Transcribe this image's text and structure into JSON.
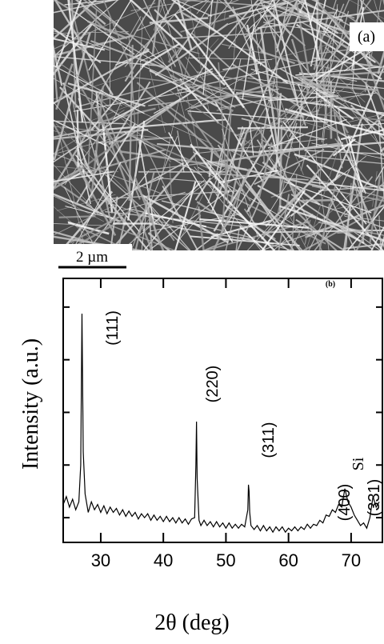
{
  "panel_a": {
    "label": "(a)",
    "scale_bar": "2 µm"
  },
  "chart_data": {
    "type": "line",
    "panel_label": "(b)",
    "x_label": "2θ (deg)",
    "y_label": "Intensity (a.u.)",
    "xlim": [
      24,
      75
    ],
    "xticks": [
      30,
      40,
      50,
      60,
      70
    ],
    "ylim": [
      -9.4,
      90.9
    ],
    "yticks": [
      0,
      20,
      40,
      60,
      80
    ],
    "ytick_labels": false,
    "color": "#000000",
    "annotations": [
      "(111)",
      "(220)",
      "(311)",
      "(400)",
      "Si",
      "(331)"
    ],
    "x": [
      24,
      24.5,
      25,
      25.5,
      26,
      26.5,
      26.8,
      27,
      27.2,
      27.5,
      28,
      28.5,
      29,
      29.5,
      30,
      30.5,
      31,
      31.5,
      32,
      32.5,
      33,
      33.5,
      34,
      34.5,
      35,
      35.5,
      36,
      36.5,
      37,
      37.5,
      38,
      38.5,
      39,
      39.5,
      40,
      40.5,
      41,
      41.5,
      42,
      42.5,
      43,
      43.5,
      44,
      44.5,
      45,
      45.2,
      45.3,
      45.4,
      45.7,
      46,
      46.5,
      47,
      47.5,
      48,
      48.5,
      49,
      49.5,
      50,
      50.5,
      51,
      51.5,
      52,
      52.5,
      53,
      53.5,
      53.6,
      53.7,
      53.8,
      54,
      54.5,
      55,
      55.5,
      56,
      56.5,
      57,
      57.5,
      58,
      58.5,
      59,
      59.5,
      60,
      60.5,
      61,
      61.5,
      62,
      62.5,
      63,
      63.5,
      64,
      64.5,
      65,
      65.5,
      66,
      66.5,
      67,
      67.5,
      68,
      68.5,
      69,
      69.5,
      70,
      70.5,
      71,
      71.5,
      72,
      72.5,
      73,
      73.5,
      74,
      74.5
    ],
    "values": [
      5,
      8,
      4,
      7,
      3,
      6,
      20,
      77.5,
      25,
      9,
      2,
      6,
      3,
      5,
      2,
      4.5,
      1.5,
      4,
      2,
      3.5,
      1,
      3,
      0.5,
      2.5,
      0.5,
      2,
      -0.5,
      1.5,
      0,
      1.5,
      -1,
      1,
      -1,
      0.5,
      -1.5,
      0.5,
      -1.5,
      0,
      -2,
      0,
      -2,
      -0.5,
      -2.5,
      -0.5,
      0,
      20,
      36.5,
      15,
      -1,
      -3,
      -1,
      -3,
      -1.5,
      -3.5,
      -1.5,
      -3.5,
      -2,
      -4,
      -2,
      -4,
      -2.5,
      -4,
      -2.5,
      -3.5,
      3,
      12.5,
      10,
      2,
      -3,
      -4.5,
      -3,
      -5,
      -3,
      -5,
      -3.5,
      -5.5,
      -3.5,
      -5,
      -3.5,
      -5.5,
      -4,
      -5,
      -3.5,
      -5,
      -3.5,
      -4.5,
      -2.5,
      -4,
      -2.5,
      -3,
      -1,
      -2,
      1,
      0.5,
      3,
      2,
      5,
      4,
      11,
      6,
      4,
      1,
      -1,
      -3,
      -2,
      -4,
      0,
      8,
      4,
      6
    ]
  }
}
